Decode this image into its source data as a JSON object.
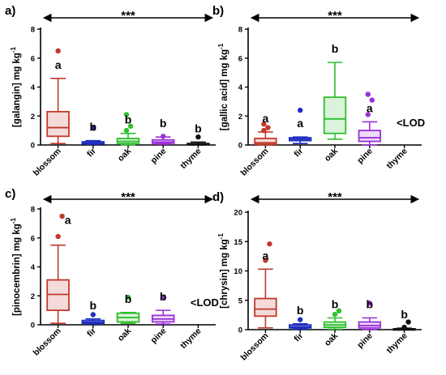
{
  "chart_data": [
    {
      "type": "box",
      "panel_label": "a)",
      "ylabel": "[galangin] mg kg",
      "ylabel_sup": "-1",
      "ylim": [
        0,
        8
      ],
      "yticks": [
        0,
        2,
        4,
        6,
        8
      ],
      "categories": [
        "blossom",
        "fir",
        "oak",
        "pine",
        "thyme"
      ],
      "significance": "***",
      "colors": [
        "#c0392b",
        "#1f2fbf",
        "#2fbf2f",
        "#9b30d9",
        "#111111"
      ],
      "boxes": [
        {
          "category": "blossom",
          "min": 0.1,
          "q1": 0.6,
          "median": 1.2,
          "q3": 2.3,
          "max": 4.6,
          "outliers": [
            6.5
          ],
          "letter": "a"
        },
        {
          "category": "fir",
          "min": 0.05,
          "q1": 0.08,
          "median": 0.12,
          "q3": 0.22,
          "max": 0.3,
          "outliers": [
            1.2
          ],
          "letter": "b"
        },
        {
          "category": "oak",
          "min": 0.02,
          "q1": 0.12,
          "median": 0.25,
          "q3": 0.45,
          "max": 0.8,
          "outliers": [
            1.0,
            1.3,
            2.1
          ],
          "letter": "b"
        },
        {
          "category": "pine",
          "min": 0.05,
          "q1": 0.12,
          "median": 0.2,
          "q3": 0.35,
          "max": 0.55,
          "outliers": [
            0.6
          ],
          "letter": "b"
        },
        {
          "category": "thyme",
          "min": 0.0,
          "q1": 0.02,
          "median": 0.05,
          "q3": 0.1,
          "max": 0.2,
          "outliers": [
            0.55
          ],
          "letter": "b"
        }
      ]
    },
    {
      "type": "box",
      "panel_label": "b)",
      "ylabel": "[gallic acid] mg kg",
      "ylabel_sup": "-1",
      "ylim": [
        0,
        8
      ],
      "yticks": [
        0,
        2,
        4,
        6,
        8
      ],
      "categories": [
        "blossom",
        "fir",
        "oak",
        "pine",
        "thyme"
      ],
      "significance": "***",
      "colors": [
        "#c0392b",
        "#1f2fbf",
        "#2fbf2f",
        "#9b30d9",
        "#111111"
      ],
      "boxes": [
        {
          "category": "blossom",
          "min": 0.0,
          "q1": 0.05,
          "median": 0.15,
          "q3": 0.45,
          "max": 0.9,
          "outliers": [
            1.0,
            1.2,
            1.45
          ],
          "letter": "a"
        },
        {
          "category": "fir",
          "min": 0.1,
          "q1": 0.3,
          "median": 0.4,
          "q3": 0.5,
          "max": 0.55,
          "outliers": [
            2.4
          ],
          "letter": "a"
        },
        {
          "category": "oak",
          "min": 0.4,
          "q1": 0.8,
          "median": 1.8,
          "q3": 3.3,
          "max": 5.7,
          "outliers": [],
          "letter": "b"
        },
        {
          "category": "pine",
          "min": 0.0,
          "q1": 0.25,
          "median": 0.5,
          "q3": 1.0,
          "max": 1.6,
          "outliers": [
            2.1,
            3.1,
            3.5
          ],
          "letter": "a"
        },
        {
          "category": "thyme",
          "min": null,
          "q1": null,
          "median": null,
          "q3": null,
          "max": null,
          "outliers": [],
          "letter": ""
        }
      ],
      "lod_label": "<LOD"
    },
    {
      "type": "box",
      "panel_label": "c)",
      "ylabel": "[pinocembrin] mg kg",
      "ylabel_sup": "-1",
      "ylim": [
        0,
        8
      ],
      "yticks": [
        0,
        2,
        4,
        6,
        8
      ],
      "categories": [
        "blossom",
        "fir",
        "oak",
        "pine",
        "thyme"
      ],
      "significance": "***",
      "colors": [
        "#c0392b",
        "#1f2fbf",
        "#2fbf2f",
        "#9b30d9",
        "#111111"
      ],
      "boxes": [
        {
          "category": "blossom",
          "min": 0.1,
          "q1": 1.0,
          "median": 2.1,
          "q3": 3.1,
          "max": 5.5,
          "outliers": [
            6.1,
            7.5
          ],
          "letter": "a"
        },
        {
          "category": "fir",
          "min": 0.05,
          "q1": 0.1,
          "median": 0.18,
          "q3": 0.3,
          "max": 0.4,
          "outliers": [
            0.7
          ],
          "letter": "b"
        },
        {
          "category": "oak",
          "min": 0.1,
          "q1": 0.2,
          "median": 0.5,
          "q3": 0.8,
          "max": 0.85,
          "outliers": [
            1.9
          ],
          "letter": "b"
        },
        {
          "category": "pine",
          "min": 0.05,
          "q1": 0.2,
          "median": 0.4,
          "q3": 0.65,
          "max": 1.0,
          "outliers": [
            1.9
          ],
          "letter": "b"
        },
        {
          "category": "thyme",
          "min": null,
          "q1": null,
          "median": null,
          "q3": null,
          "max": null,
          "outliers": [],
          "letter": ""
        }
      ],
      "lod_label": "<LOD"
    },
    {
      "type": "box",
      "panel_label": "d)",
      "ylabel": "[chrysin] mg kg",
      "ylabel_sup": "-1",
      "ylim": [
        0,
        20
      ],
      "yticks": [
        0,
        5,
        10,
        15,
        20
      ],
      "categories": [
        "blossom",
        "fir",
        "oak",
        "pine",
        "thyme"
      ],
      "significance": "***",
      "colors": [
        "#c0392b",
        "#1f2fbf",
        "#2fbf2f",
        "#9b30d9",
        "#111111"
      ],
      "boxes": [
        {
          "category": "blossom",
          "min": 0.3,
          "q1": 2.3,
          "median": 3.5,
          "q3": 5.3,
          "max": 10.3,
          "outliers": [
            11.8,
            14.6
          ],
          "letter": "a"
        },
        {
          "category": "fir",
          "min": 0.1,
          "q1": 0.3,
          "median": 0.5,
          "q3": 0.8,
          "max": 1.0,
          "outliers": [
            1.7
          ],
          "letter": "b"
        },
        {
          "category": "oak",
          "min": 0.1,
          "q1": 0.4,
          "median": 0.8,
          "q3": 1.3,
          "max": 2.0,
          "outliers": [
            2.6,
            3.2
          ],
          "letter": "b"
        },
        {
          "category": "pine",
          "min": 0.05,
          "q1": 0.3,
          "median": 0.7,
          "q3": 1.3,
          "max": 2.0,
          "outliers": [
            4.5
          ],
          "letter": "b"
        },
        {
          "category": "thyme",
          "min": 0.0,
          "q1": 0.02,
          "median": 0.05,
          "q3": 0.15,
          "max": 0.25,
          "outliers": [
            0.4,
            1.3
          ],
          "letter": "b"
        }
      ]
    }
  ]
}
